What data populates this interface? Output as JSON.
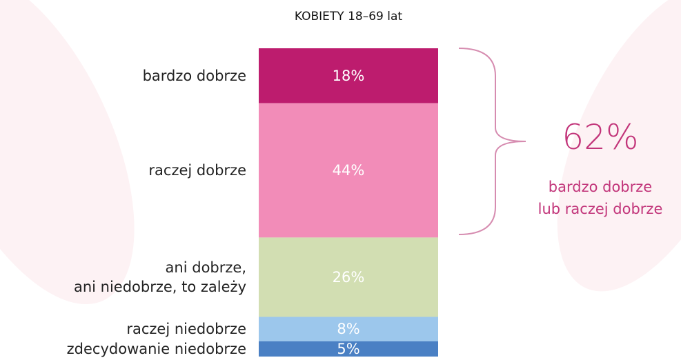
{
  "chart_data": {
    "type": "stacked_bar",
    "title": "KOBIETY 18–69 lat",
    "categories": [
      "bardzo dobrze",
      "raczej dobrze",
      "ani dobrze,\nani niedobrze, to zależy",
      "raczej niedobrze",
      "zdecydowanie niedobrze"
    ],
    "values": [
      18,
      44,
      26,
      8,
      5
    ],
    "value_labels": [
      "18%",
      "44%",
      "26%",
      "8%",
      "5%"
    ],
    "colors": [
      "#bd1c6e",
      "#f28cb8",
      "#d2deb2",
      "#9cc7ec",
      "#4a80c4"
    ],
    "annotation": {
      "text": "62%",
      "label": "bardzo dobrze\nlub raczej dobrze"
    }
  }
}
